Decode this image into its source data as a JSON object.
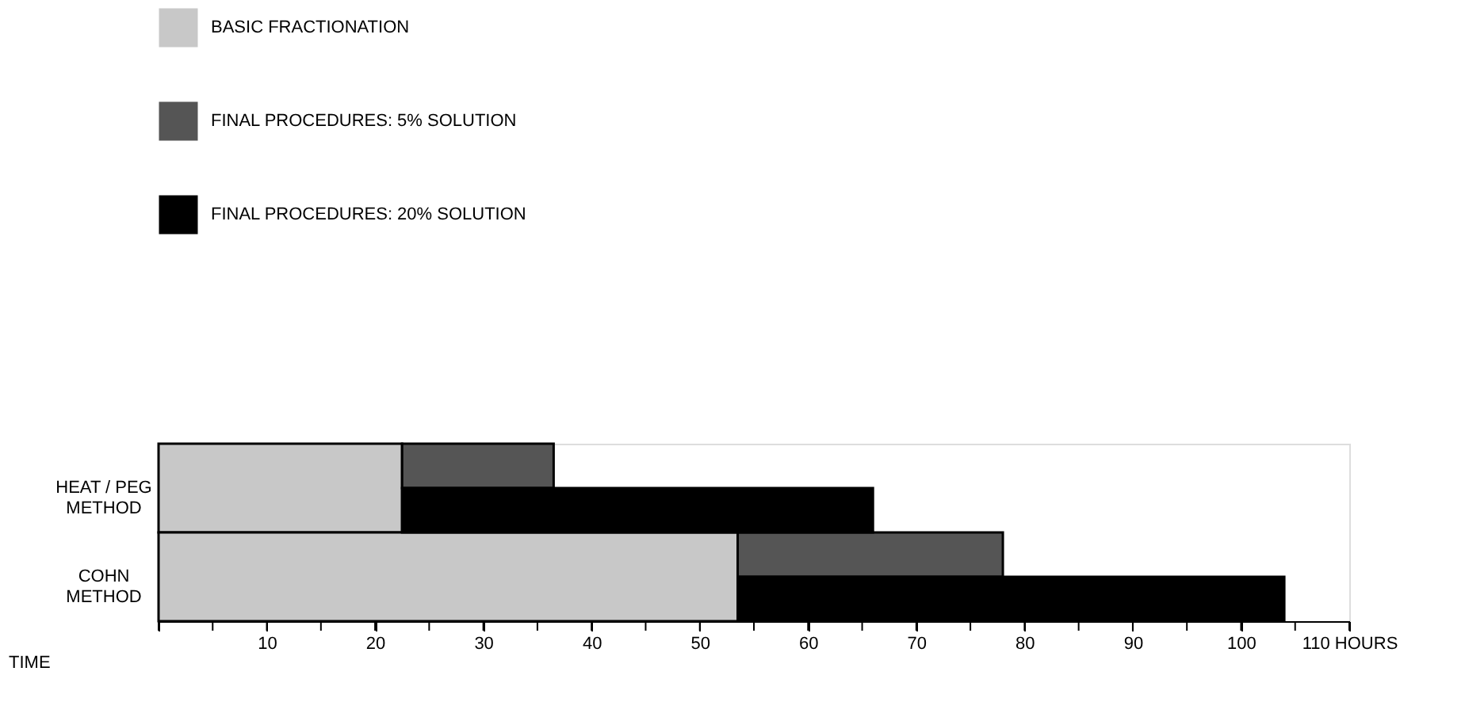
{
  "chart_data": {
    "type": "bar",
    "orientation": "horizontal",
    "xlabel": "TIME",
    "categories": [
      "HEAT / PEG METHOD",
      "COHN METHOD"
    ],
    "series": [
      {
        "name": "BASIC FRACTIONATION",
        "color": "#c8c8c8",
        "values": [
          22.5,
          53.5
        ],
        "base": [
          0,
          0
        ]
      },
      {
        "name": "FINAL PROCEDURES: 5% SOLUTION",
        "color": "#555555",
        "values": [
          14,
          24.5
        ],
        "base": [
          22.5,
          53.5
        ]
      },
      {
        "name": "FINAL PROCEDURES: 20% SOLUTION",
        "color": "#000000",
        "values": [
          43.5,
          50.5
        ],
        "base": [
          22.5,
          53.5
        ]
      }
    ],
    "xlim": [
      0,
      110
    ],
    "xticks": [
      {
        "value": 0,
        "label": null
      },
      {
        "value": 5,
        "label": null
      },
      10,
      {
        "value": 15,
        "label": null
      },
      20,
      {
        "value": 25,
        "label": null
      },
      30,
      {
        "value": 35,
        "label": null
      },
      40,
      {
        "value": 45,
        "label": null
      },
      50,
      {
        "value": 55,
        "label": null
      },
      60,
      {
        "value": 65,
        "label": null
      },
      70,
      {
        "value": 75,
        "label": null
      },
      80,
      {
        "value": 85,
        "label": null
      },
      90,
      {
        "value": 95,
        "label": null
      },
      100,
      {
        "value": 105,
        "label": null
      },
      {
        "value": 110,
        "label": "110 HOURS"
      }
    ],
    "grid": false,
    "legend": "top left"
  }
}
